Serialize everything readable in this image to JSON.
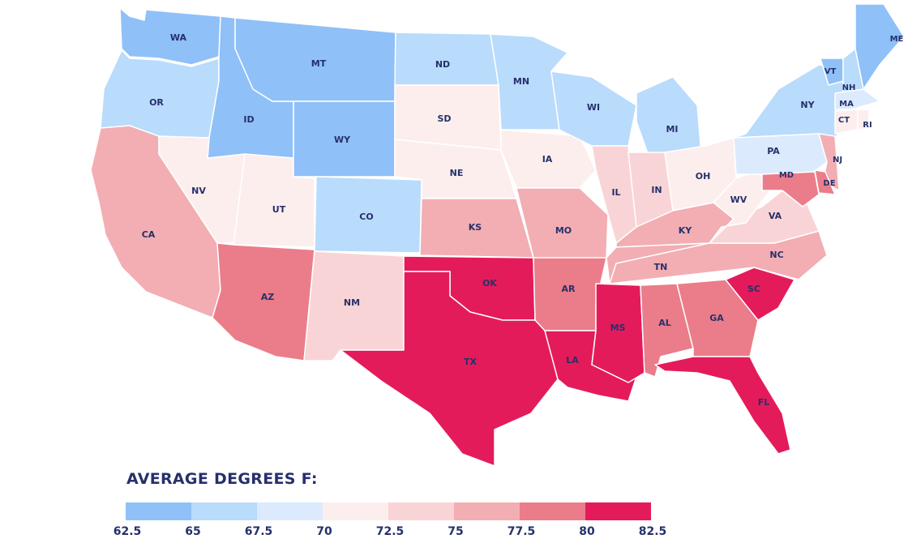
{
  "legend": {
    "title": "AVERAGE DEGREES F:",
    "ticks": [
      "62.5",
      "65",
      "67.5",
      "70",
      "72.5",
      "75",
      "77.5",
      "80",
      "82.5"
    ],
    "colors": [
      "#8fc0f8",
      "#b9dbfc",
      "#dbeafd",
      "#fdeeee",
      "#f9d4d6",
      "#f2aeb3",
      "#ea7d89",
      "#e41b5a"
    ]
  },
  "states": [
    {
      "code": "WA",
      "bin": 0
    },
    {
      "code": "OR",
      "bin": 1
    },
    {
      "code": "CA",
      "bin": 5
    },
    {
      "code": "ID",
      "bin": 0
    },
    {
      "code": "NV",
      "bin": 3
    },
    {
      "code": "UT",
      "bin": 3
    },
    {
      "code": "AZ",
      "bin": 6
    },
    {
      "code": "MT",
      "bin": 0
    },
    {
      "code": "WY",
      "bin": 0
    },
    {
      "code": "CO",
      "bin": 1
    },
    {
      "code": "NM",
      "bin": 4
    },
    {
      "code": "ND",
      "bin": 1
    },
    {
      "code": "SD",
      "bin": 3
    },
    {
      "code": "NE",
      "bin": 3
    },
    {
      "code": "KS",
      "bin": 5
    },
    {
      "code": "OK",
      "bin": 7
    },
    {
      "code": "TX",
      "bin": 7
    },
    {
      "code": "MN",
      "bin": 1
    },
    {
      "code": "IA",
      "bin": 3
    },
    {
      "code": "MO",
      "bin": 5
    },
    {
      "code": "AR",
      "bin": 6
    },
    {
      "code": "LA",
      "bin": 7
    },
    {
      "code": "WI",
      "bin": 1
    },
    {
      "code": "IL",
      "bin": 4
    },
    {
      "code": "MI",
      "bin": 1
    },
    {
      "code": "IN",
      "bin": 4
    },
    {
      "code": "OH",
      "bin": 3
    },
    {
      "code": "KY",
      "bin": 5
    },
    {
      "code": "TN",
      "bin": 5
    },
    {
      "code": "MS",
      "bin": 7
    },
    {
      "code": "AL",
      "bin": 6
    },
    {
      "code": "GA",
      "bin": 6
    },
    {
      "code": "FL",
      "bin": 7
    },
    {
      "code": "SC",
      "bin": 7
    },
    {
      "code": "NC",
      "bin": 5
    },
    {
      "code": "VA",
      "bin": 4
    },
    {
      "code": "WV",
      "bin": 3
    },
    {
      "code": "PA",
      "bin": 2
    },
    {
      "code": "NY",
      "bin": 1
    },
    {
      "code": "VT",
      "bin": 0
    },
    {
      "code": "NH",
      "bin": 1
    },
    {
      "code": "ME",
      "bin": 0
    },
    {
      "code": "MA",
      "bin": 2
    },
    {
      "code": "CT",
      "bin": 3
    },
    {
      "code": "RI",
      "bin": 3
    },
    {
      "code": "NJ",
      "bin": 5
    },
    {
      "code": "DE",
      "bin": 6
    },
    {
      "code": "MD",
      "bin": 6
    }
  ]
}
